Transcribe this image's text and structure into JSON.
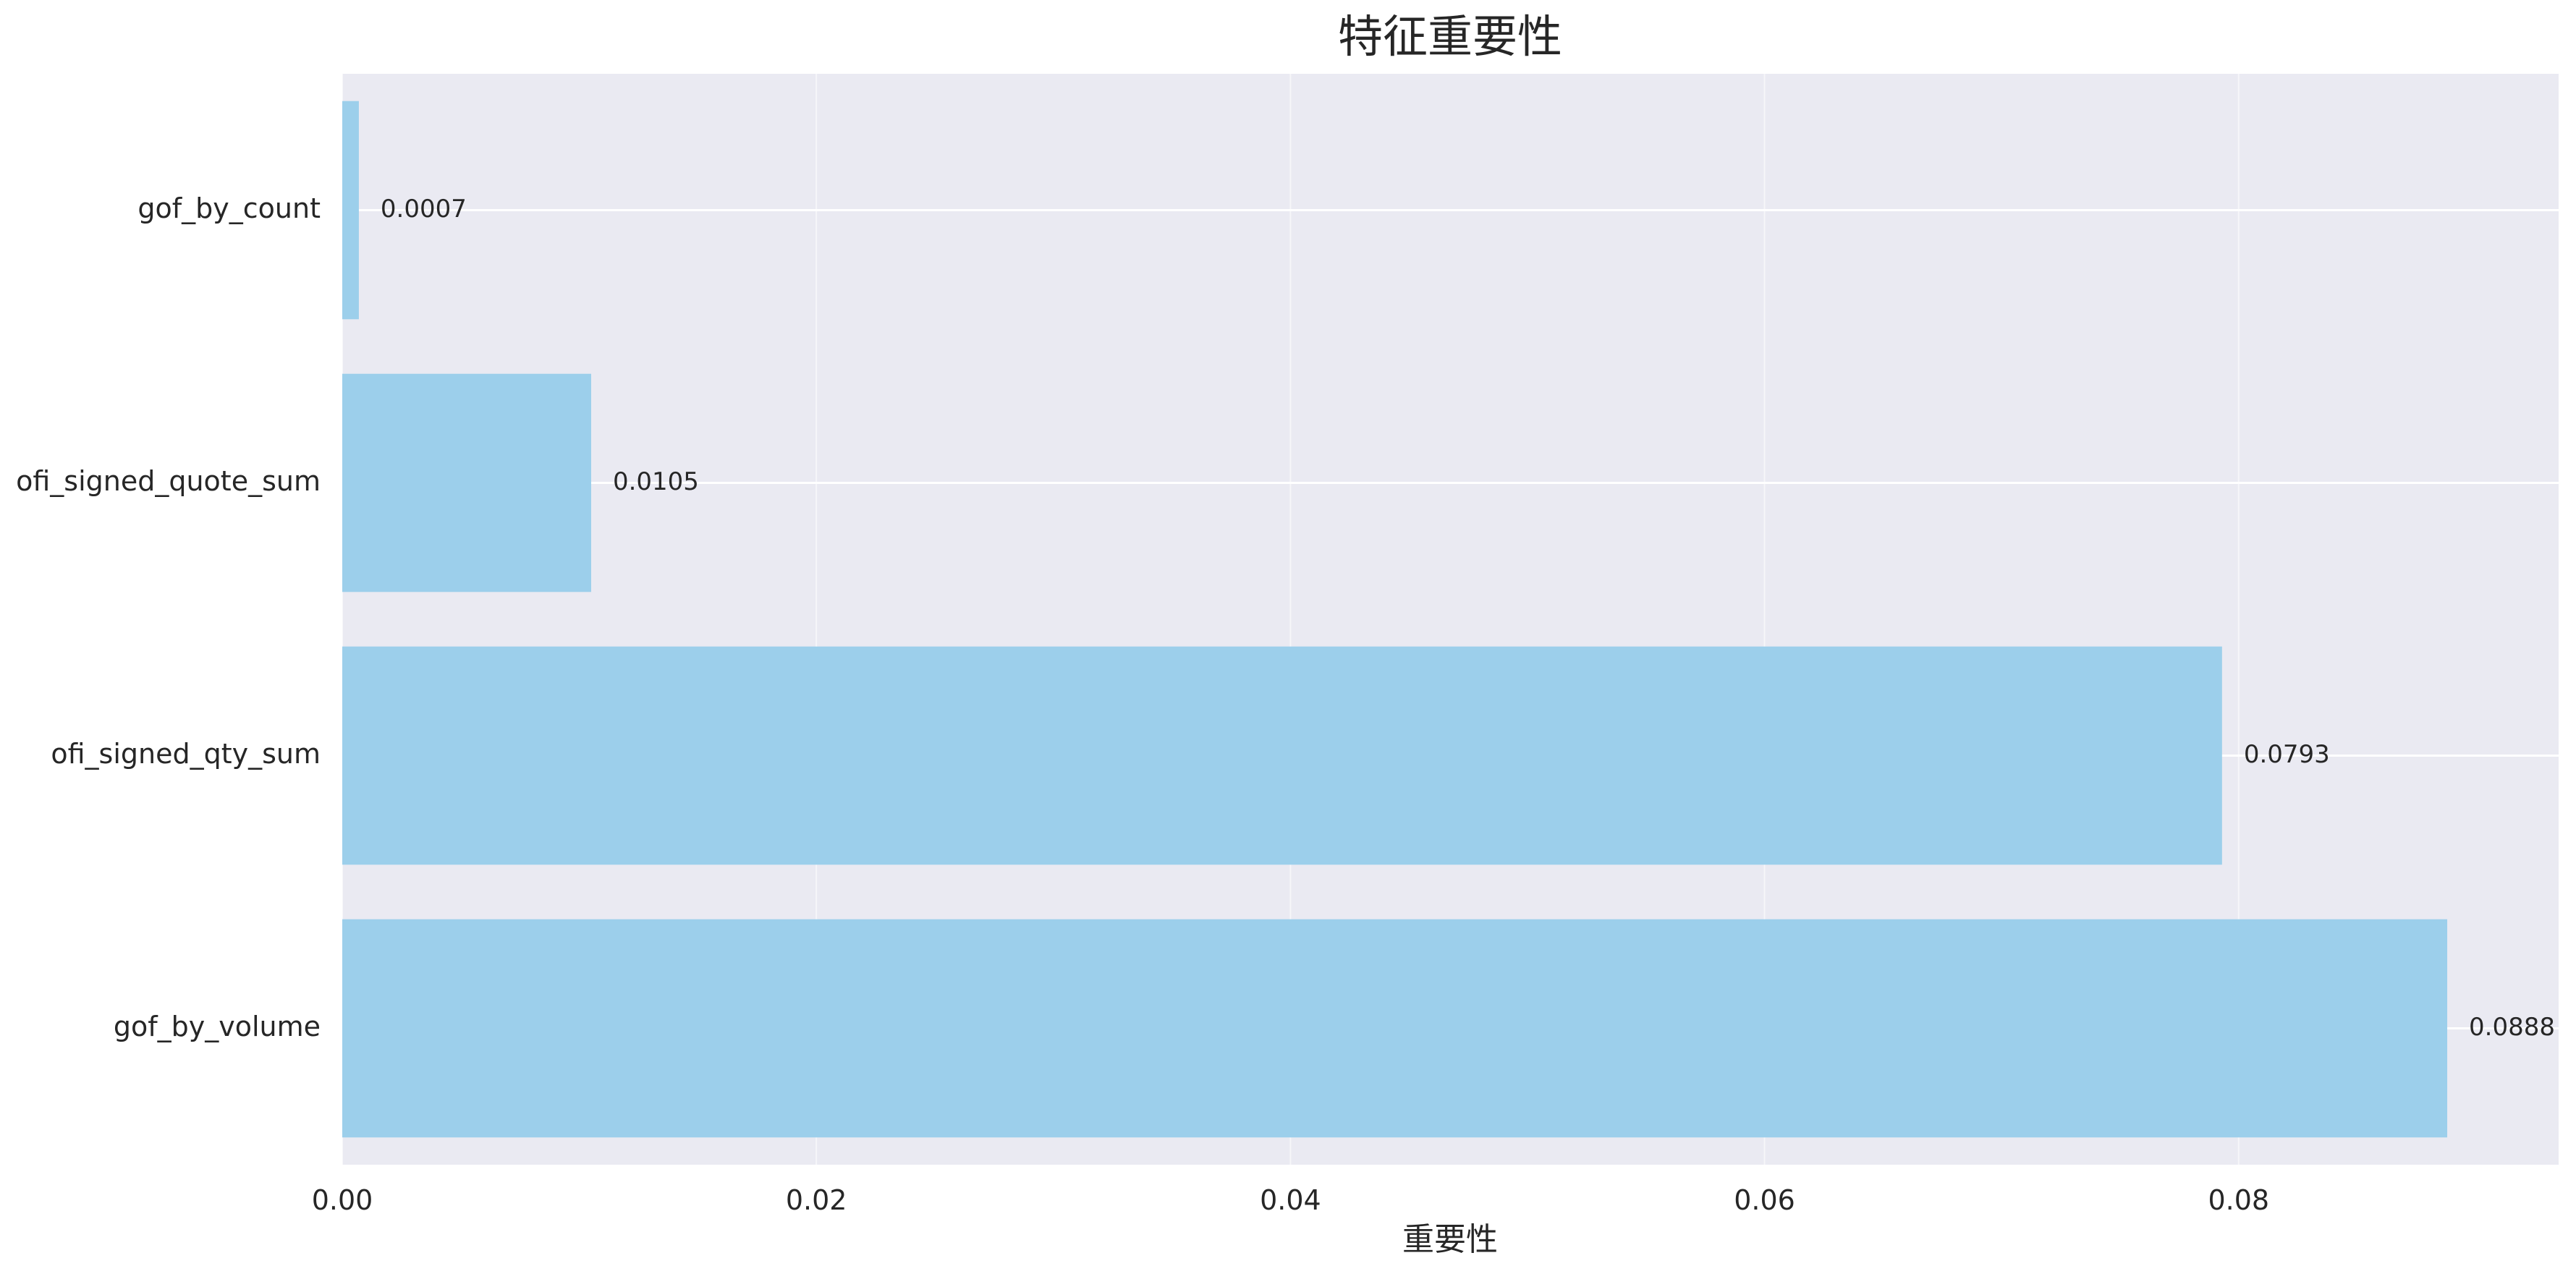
{
  "chart_data": {
    "type": "bar",
    "orientation": "horizontal",
    "title": "特征重要性",
    "xlabel": "重要性",
    "ylabel": "",
    "categories": [
      "gof_by_count",
      "ofi_signed_quote_sum",
      "ofi_signed_qty_sum",
      "gof_by_volume"
    ],
    "values": [
      0.0007,
      0.0105,
      0.0793,
      0.0888
    ],
    "value_labels": [
      "0.0007",
      "0.0105",
      "0.0793",
      "0.0888"
    ],
    "xlim": [
      0,
      0.0935
    ],
    "xticks": [
      0,
      0.02,
      0.04,
      0.06,
      0.08
    ],
    "xtick_labels": [
      "0.00",
      "0.02",
      "0.04",
      "0.06",
      "0.08"
    ],
    "grid": true,
    "legend": "none",
    "colors": {
      "bar": "#9ccfeb",
      "plot_background": "#eaeaf2",
      "grid": "#ffffff",
      "text": "#262626"
    }
  }
}
